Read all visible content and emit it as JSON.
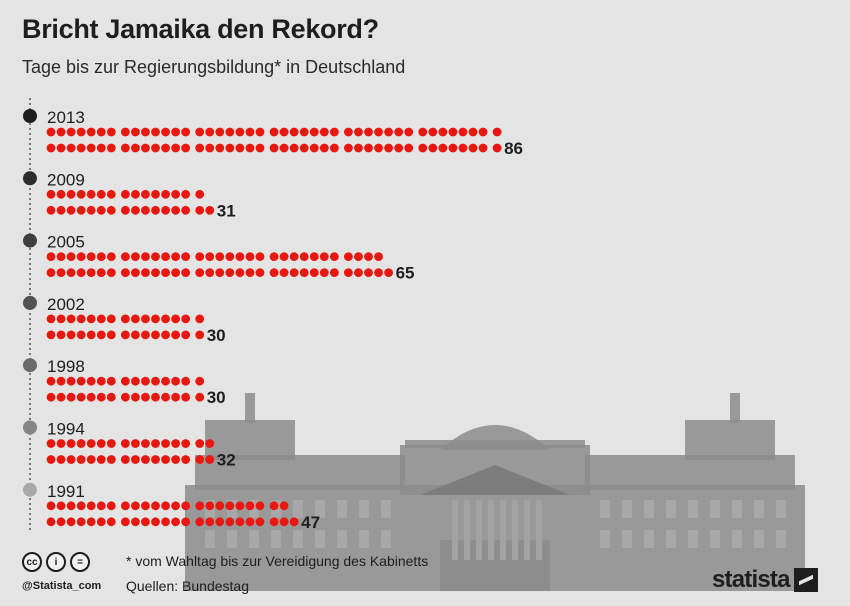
{
  "title": "Bricht Jamaika den Rekord?",
  "subtitle": "Tage bis zur Regierungsbildung* in Deutschland",
  "footnote": "* vom Wahltag bis zur Vereidigung des Kabinetts",
  "sources": "Quellen: Bundestag",
  "handle": "@Statista_com",
  "logo_text": "statista",
  "license_icons": [
    "cc",
    "i",
    "="
  ],
  "colors": {
    "dot": "#e8170f",
    "text": "#1e1e1e",
    "background": "#e4e4e4",
    "building": "#8c8c8c",
    "timeline_markers": [
      "#1e1e1e",
      "#2c2c2c",
      "#3e3e3e",
      "#525252",
      "#6a6a6a",
      "#858585",
      "#a8a8a8"
    ]
  },
  "chart_data": {
    "type": "bar",
    "title": "Bricht Jamaika den Rekord?",
    "subtitle": "Tage bis zur Regierungsbildung* in Deutschland",
    "categories": [
      "2013",
      "2009",
      "2005",
      "2002",
      "1998",
      "1994",
      "1991"
    ],
    "values": [
      86,
      31,
      65,
      30,
      30,
      32,
      47
    ],
    "unit": "Tage",
    "encoding": "one dot per day, grouped in weeks of 7",
    "xlabel": "",
    "ylabel": ""
  }
}
